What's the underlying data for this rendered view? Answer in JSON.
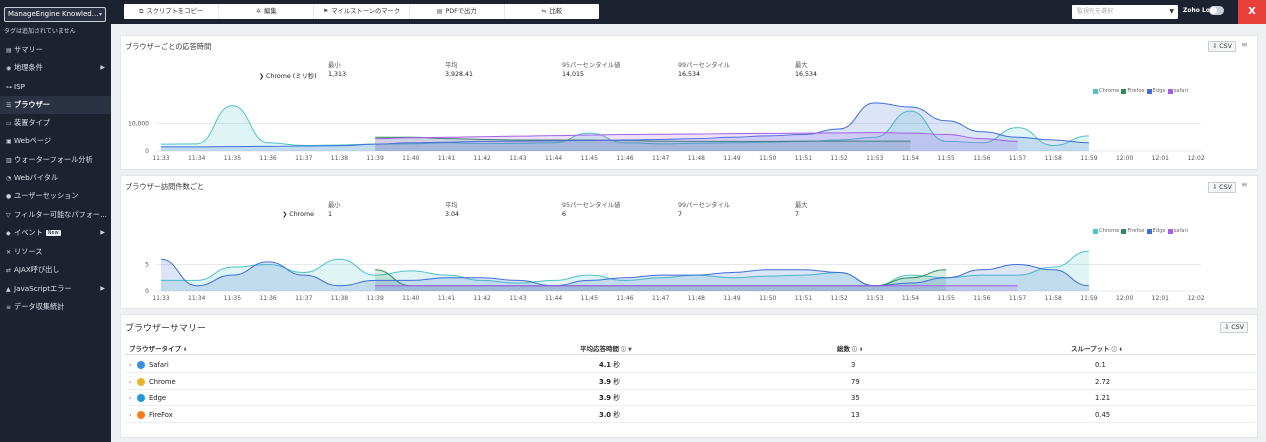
{
  "sidebar": {
    "app_select": "ManageEngine Knowled...",
    "tags_note": "タグは追加されていません",
    "items": [
      {
        "label": "サマリー",
        "icon": "document-icon",
        "glyph": "▤",
        "arrow": false,
        "active": false
      },
      {
        "label": "地理条件",
        "icon": "location-pin-icon",
        "glyph": "◉",
        "arrow": true,
        "active": false
      },
      {
        "label": "ISP",
        "icon": "plug-icon",
        "glyph": "⊶",
        "arrow": false,
        "active": false
      },
      {
        "label": "ブラウザー",
        "icon": "browser-list-icon",
        "glyph": "☰",
        "arrow": false,
        "active": true
      },
      {
        "label": "装置タイプ",
        "icon": "monitor-icon",
        "glyph": "▭",
        "arrow": false,
        "active": false
      },
      {
        "label": "Webページ",
        "icon": "webpage-icon",
        "glyph": "▣",
        "arrow": false,
        "active": false
      },
      {
        "label": "ウォーターフォール分析",
        "icon": "waterfall-icon",
        "glyph": "▥",
        "arrow": false,
        "active": false
      },
      {
        "label": "Webバイタル",
        "icon": "gauge-icon",
        "glyph": "◔",
        "arrow": false,
        "active": false
      },
      {
        "label": "ユーザーセッション",
        "icon": "user-icon",
        "glyph": "●",
        "arrow": false,
        "active": false
      },
      {
        "label": "フィルター可能なパフォー...",
        "icon": "filter-icon",
        "glyph": "▽",
        "arrow": false,
        "active": false
      },
      {
        "label": "イベント",
        "icon": "event-icon",
        "glyph": "◆",
        "arrow": true,
        "active": false,
        "badge": "New"
      },
      {
        "label": "リソース",
        "icon": "resource-icon",
        "glyph": "✕",
        "arrow": false,
        "active": false
      },
      {
        "label": "AJAX呼び出し",
        "icon": "ajax-icon",
        "glyph": "⇄",
        "arrow": false,
        "active": false
      },
      {
        "label": "JavaScriptエラー",
        "icon": "warning-icon",
        "glyph": "▲",
        "arrow": true,
        "active": false
      },
      {
        "label": "データ収集統計",
        "icon": "stats-icon",
        "glyph": "≡",
        "arrow": false,
        "active": false
      }
    ]
  },
  "toolbar": {
    "buttons": [
      {
        "label": "スクリプトをコピー",
        "icon": "copy-icon",
        "glyph": "⧉"
      },
      {
        "label": "編集",
        "icon": "settings-icon",
        "glyph": "✲"
      },
      {
        "label": "マイルストーンのマーク",
        "icon": "flag-icon",
        "glyph": "⚑"
      },
      {
        "label": "PDFで出力",
        "icon": "pdf-icon",
        "glyph": "▤"
      },
      {
        "label": "比較",
        "icon": "compare-icon",
        "glyph": "⇋"
      }
    ],
    "monitor_select_placeholder": "監視先を選択",
    "zoho_logs": "Zoho Logs :",
    "close": "X"
  },
  "panel1": {
    "title": "ブラウザーごとの応答時間",
    "csv": "CSV",
    "stats": {
      "row_label": "Chrome (ミリ秒)",
      "headers": [
        "最小",
        "平均",
        "95パーセンタイル値",
        "99パーセンタイル",
        "最大"
      ],
      "values": [
        "1,313",
        "3,928.41",
        "14,015",
        "16,534",
        "16,534"
      ]
    }
  },
  "panel2": {
    "title": "ブラウザー訪問件数ごと",
    "csv": "CSV",
    "stats": {
      "row_label": "Chrome",
      "headers": [
        "最小",
        "平均",
        "95パーセンタイル値",
        "99パーセンタイル",
        "最大"
      ],
      "values": [
        "1",
        "3.04",
        "6",
        "7",
        "7"
      ]
    }
  },
  "legend": [
    {
      "name": "Chrome",
      "color": "#4fc3c8"
    },
    {
      "name": "Firefox",
      "color": "#2e8b57"
    },
    {
      "name": "Edge",
      "color": "#3f6fd8"
    },
    {
      "name": "safari",
      "color": "#a25ee8"
    }
  ],
  "chart_data": [
    {
      "type": "area",
      "x": [
        "11:33",
        "11:34",
        "11:35",
        "11:36",
        "11:37",
        "11:38",
        "11:39",
        "11:40",
        "11:41",
        "11:42",
        "11:43",
        "11:44",
        "11:45",
        "11:46",
        "11:47",
        "11:48",
        "11:49",
        "11:50",
        "11:51",
        "11:52",
        "11:53",
        "11:54",
        "11:55",
        "11:56",
        "11:57",
        "11:58",
        "11:59",
        "12:00",
        "12:01",
        "12:02"
      ],
      "ylim": [
        0,
        20000
      ],
      "yticks": [
        "0",
        "10,000"
      ],
      "series": [
        {
          "name": "Chrome",
          "values": [
            2500,
            2600,
            16500,
            3000,
            2000,
            2200,
            2500,
            2600,
            3000,
            2700,
            2800,
            3000,
            6500,
            3000,
            2600,
            2800,
            3000,
            3200,
            3500,
            4000,
            5000,
            14500,
            3500,
            3000,
            8500,
            2000,
            5500,
            null,
            null,
            null
          ]
        },
        {
          "name": "Firefox",
          "values": [
            null,
            null,
            null,
            null,
            null,
            null,
            5000,
            5000,
            4500,
            4200,
            4000,
            4000,
            4000,
            3800,
            3600,
            3500,
            3500,
            3500,
            3600,
            3600,
            3600,
            3600,
            null,
            null,
            null,
            null,
            null,
            null,
            null,
            null
          ]
        },
        {
          "name": "Edge",
          "values": [
            1500,
            1500,
            1600,
            1700,
            1800,
            1900,
            2500,
            3000,
            3200,
            3500,
            3600,
            3700,
            3800,
            4000,
            4200,
            4500,
            5000,
            5500,
            6000,
            8000,
            17500,
            16000,
            11000,
            7000,
            5000,
            4000,
            3000,
            null,
            null,
            null
          ]
        },
        {
          "name": "safari",
          "values": [
            null,
            null,
            null,
            null,
            null,
            null,
            4500,
            4800,
            5000,
            5200,
            5400,
            5600,
            5800,
            6000,
            6100,
            6200,
            6300,
            6400,
            6500,
            6600,
            6700,
            6500,
            6000,
            4500,
            3500,
            null,
            null,
            null,
            null,
            null
          ]
        }
      ]
    },
    {
      "type": "area",
      "x": [
        "11:33",
        "11:34",
        "11:35",
        "11:36",
        "11:37",
        "11:38",
        "11:39",
        "11:40",
        "11:41",
        "11:42",
        "11:43",
        "11:44",
        "11:45",
        "11:46",
        "11:47",
        "11:48",
        "11:49",
        "11:50",
        "11:51",
        "11:52",
        "11:53",
        "11:54",
        "11:55",
        "11:56",
        "11:57",
        "11:58",
        "11:59",
        "12:00",
        "12:01",
        "12:02"
      ],
      "ylim": [
        0,
        10
      ],
      "yticks": [
        "0",
        "5"
      ],
      "series": [
        {
          "name": "Chrome",
          "values": [
            2,
            2,
            4.5,
            5,
            3.5,
            6,
            3,
            3.8,
            3,
            2,
            1.5,
            2,
            3,
            2,
            2.5,
            3,
            2.5,
            2.8,
            3,
            3.5,
            1,
            3,
            2.5,
            3,
            3,
            4.5,
            7.5,
            null,
            null,
            null
          ]
        },
        {
          "name": "Firefox",
          "values": [
            null,
            null,
            null,
            null,
            null,
            null,
            4,
            1,
            1,
            1,
            1,
            1,
            1,
            1,
            1,
            1,
            1,
            1,
            1,
            1,
            1,
            2.5,
            4,
            null,
            null,
            null,
            null,
            null,
            null,
            null
          ]
        },
        {
          "name": "Edge",
          "values": [
            6,
            1,
            3,
            5.5,
            3,
            1,
            2,
            2,
            2.5,
            2.5,
            2,
            1,
            2,
            2.5,
            3,
            3,
            3.5,
            4,
            4,
            3.5,
            1,
            1.5,
            2.5,
            4,
            5,
            4,
            1,
            null,
            null,
            null
          ]
        },
        {
          "name": "safari",
          "values": [
            null,
            null,
            null,
            null,
            null,
            null,
            1,
            1,
            1,
            1,
            1,
            1,
            1,
            1,
            1,
            1,
            1,
            1,
            1,
            1,
            1,
            1,
            1,
            1,
            1,
            null,
            null,
            null,
            null,
            null
          ]
        }
      ]
    }
  ],
  "summary": {
    "title": "ブラウザーサマリー",
    "csv": "CSV",
    "columns": [
      "ブラウザータイプ",
      "平均応答時間",
      "総数",
      "スループット"
    ],
    "rows": [
      {
        "browser": "Safari",
        "avg": "4.1",
        "unit": "秒",
        "count": "3",
        "throughput": "0.1",
        "icon_color": "#3d8fd8"
      },
      {
        "browser": "Chrome",
        "avg": "3.9",
        "unit": "秒",
        "count": "79",
        "throughput": "2.72",
        "icon_color": "#e8b42a"
      },
      {
        "browser": "Edge",
        "avg": "3.9",
        "unit": "秒",
        "count": "35",
        "throughput": "1.21",
        "icon_color": "#1f9ad6"
      },
      {
        "browser": "FireFox",
        "avg": "3.0",
        "unit": "秒",
        "count": "13",
        "throughput": "0.45",
        "icon_color": "#ff7a1a"
      }
    ]
  }
}
